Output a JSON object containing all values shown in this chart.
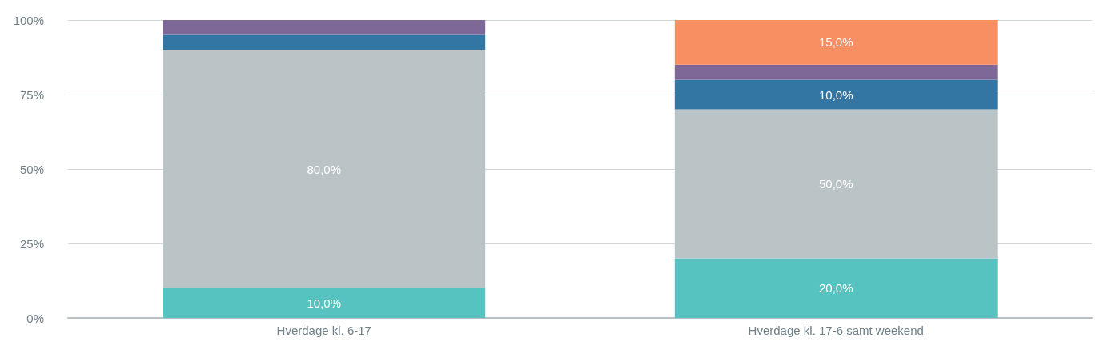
{
  "chart_data": {
    "type": "bar",
    "stacked": true,
    "categories": [
      "Hverdage kl. 6-17",
      "Hverdage kl. 17-6 samt weekend"
    ],
    "series": [
      {
        "color": "#56c3c0",
        "values": [
          10,
          20
        ],
        "value_labels": [
          "10,0%",
          "20,0%"
        ]
      },
      {
        "color": "#bac4c6",
        "values": [
          80,
          50
        ],
        "value_labels": [
          "80,0%",
          "50,0%"
        ]
      },
      {
        "color": "#3476a3",
        "values": [
          5,
          10
        ],
        "value_labels": [
          null,
          "10,0%"
        ]
      },
      {
        "color": "#7e6897",
        "values": [
          5,
          5
        ],
        "value_labels": [
          null,
          null
        ]
      },
      {
        "color": "#f78f62",
        "values": [
          0,
          15
        ],
        "value_labels": [
          null,
          "15,0%"
        ]
      }
    ],
    "ylim": [
      0,
      100
    ],
    "yticks": [
      {
        "value": 0,
        "label": "0%"
      },
      {
        "value": 25,
        "label": "25%"
      },
      {
        "value": 50,
        "label": "50%"
      },
      {
        "value": 75,
        "label": "75%"
      },
      {
        "value": 100,
        "label": "100%"
      }
    ],
    "grid": "y"
  }
}
